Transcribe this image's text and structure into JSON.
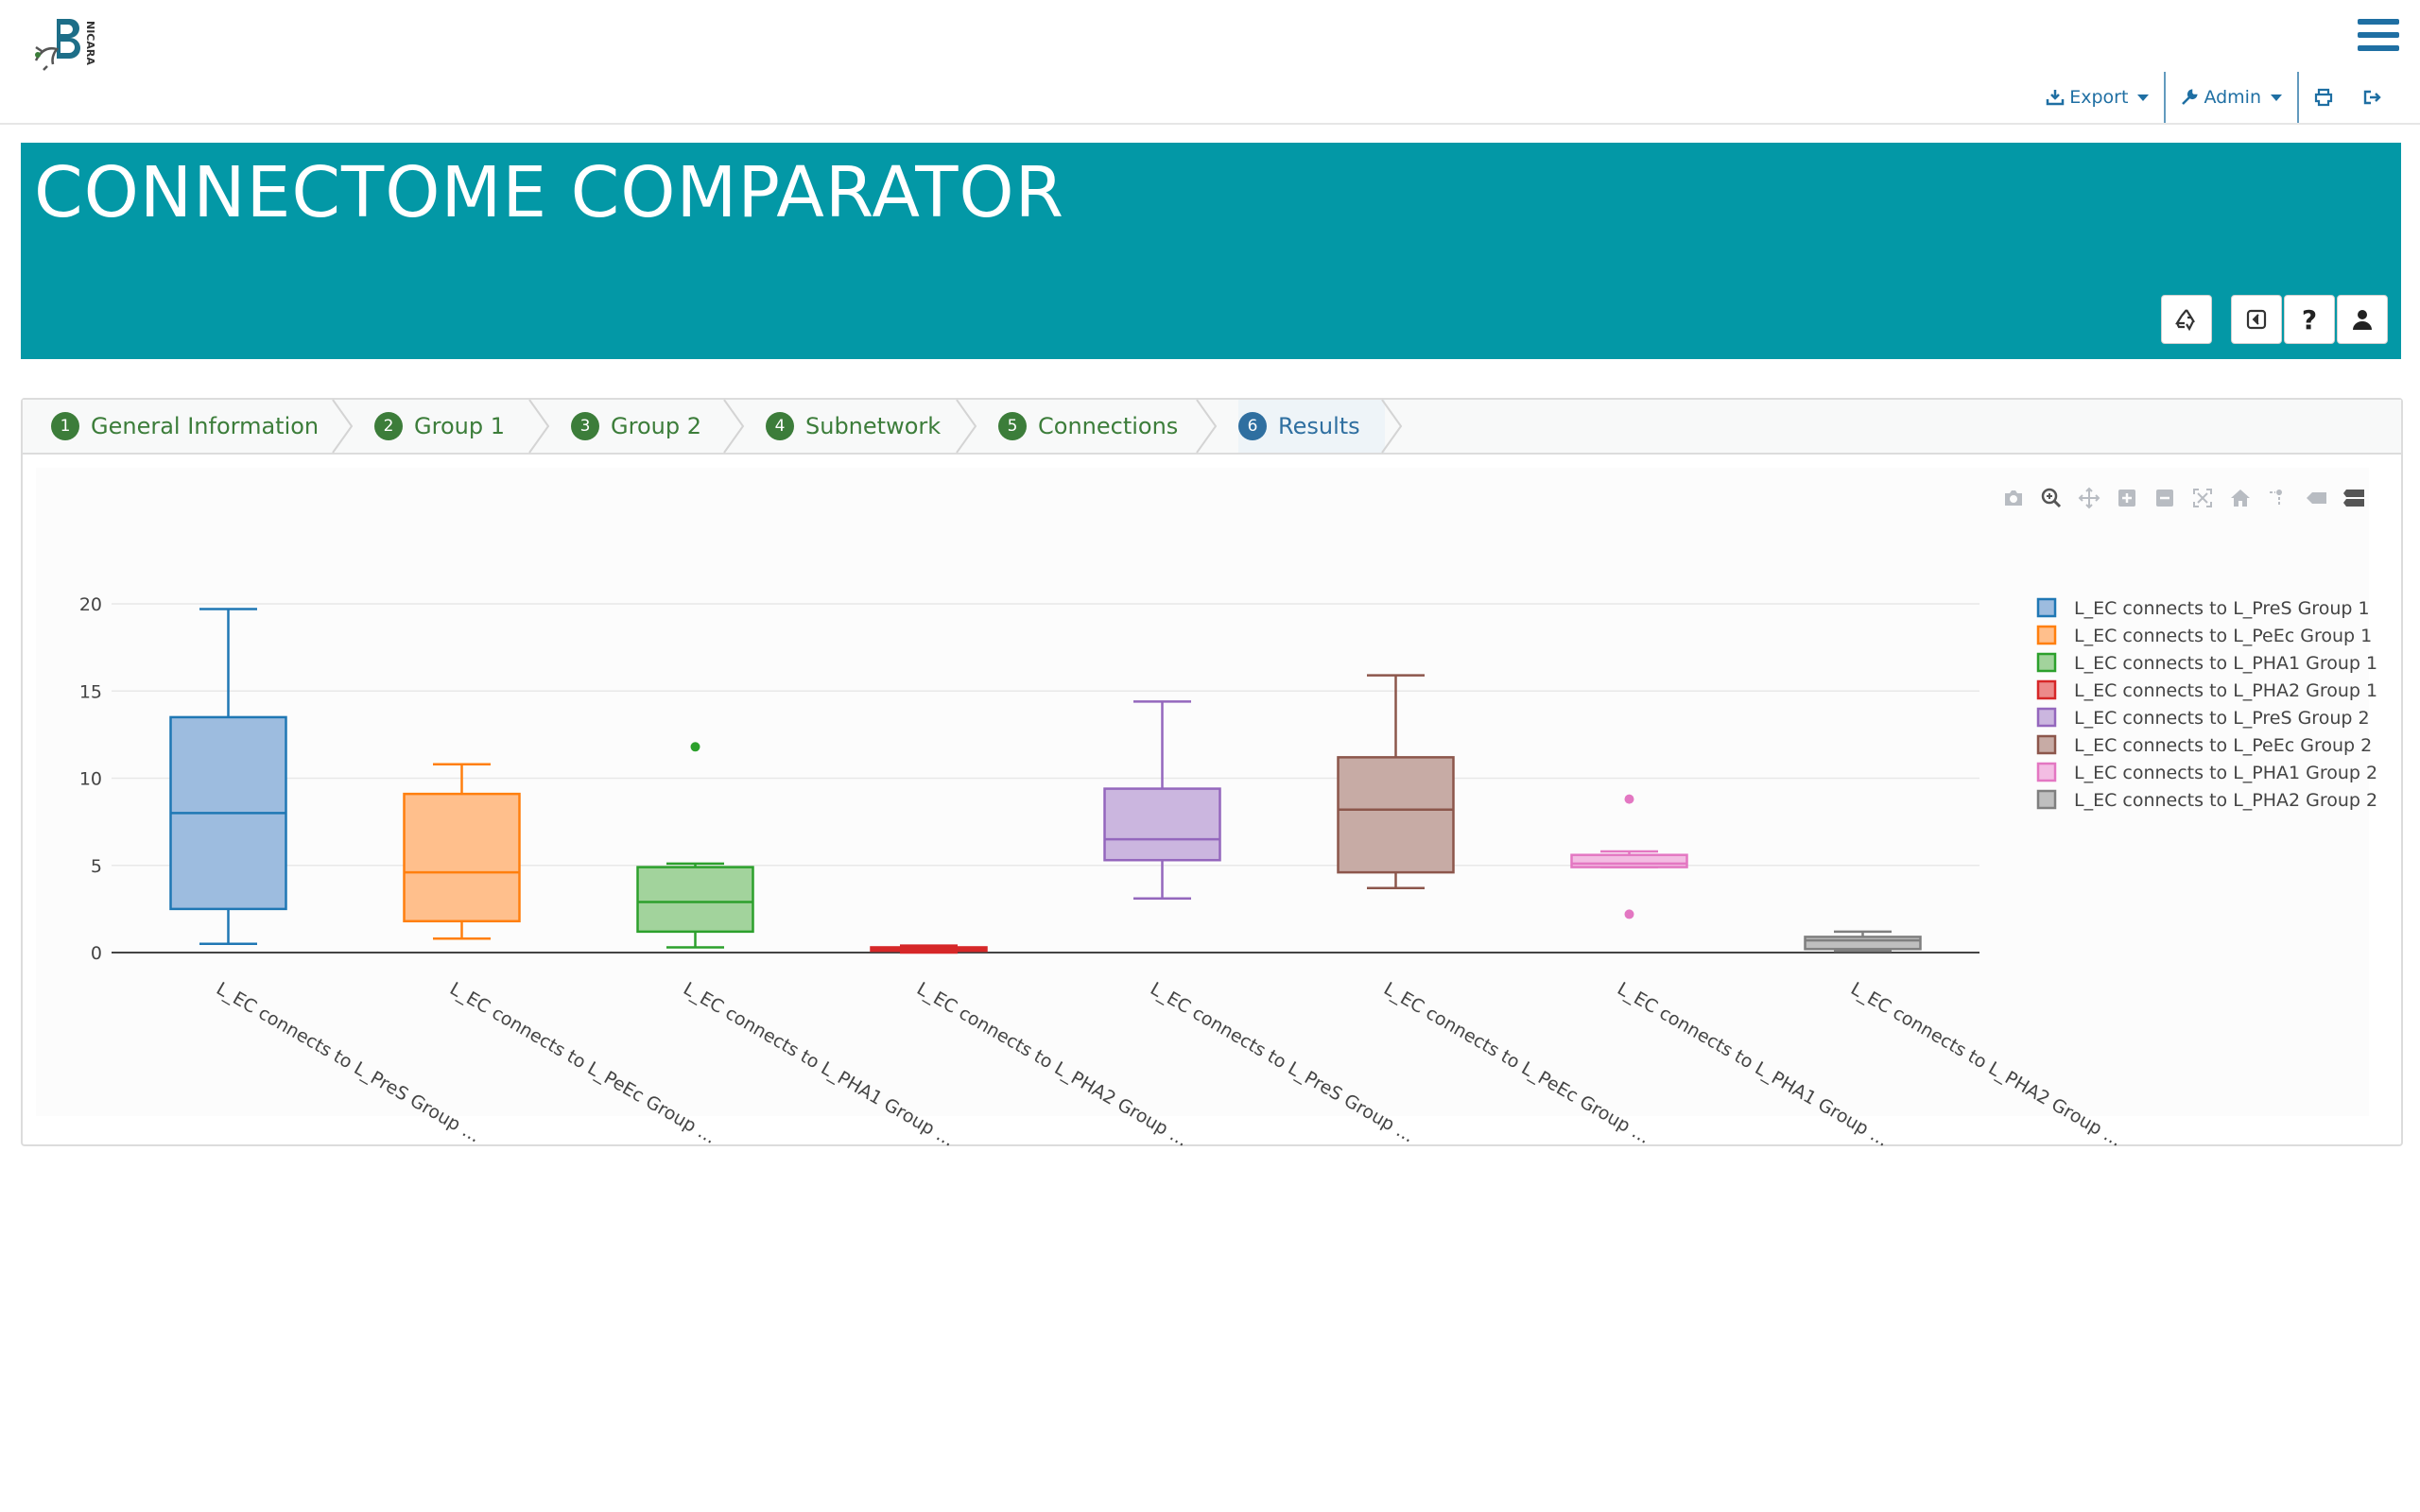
{
  "app": {
    "logo_text": "NICARA",
    "menu_icon": "hamburger-icon"
  },
  "toolbar": {
    "export_label": "Export",
    "admin_label": "Admin",
    "export_icon": "download-icon",
    "admin_icon": "wrench-icon",
    "print_icon": "print-icon",
    "logout_icon": "sign-out-icon"
  },
  "banner": {
    "title": "CONNECTOME COMPARATOR",
    "buttons": [
      "recycle-icon",
      "back-icon",
      "help-icon",
      "user-icon"
    ],
    "help_glyph": "?"
  },
  "wizard": {
    "tabs": [
      {
        "num": "1",
        "label": "General Information"
      },
      {
        "num": "2",
        "label": "Group 1"
      },
      {
        "num": "3",
        "label": "Group 2"
      },
      {
        "num": "4",
        "label": "Subnetwork"
      },
      {
        "num": "5",
        "label": "Connections"
      },
      {
        "num": "6",
        "label": "Results"
      }
    ],
    "active_tab": "6"
  },
  "colors": {
    "banner": "#0398a6",
    "tab_green": "#3c7d3a",
    "tab_active": "#2f6fa0",
    "link_blue": "#1f6fa3"
  },
  "chart_data": {
    "type": "box",
    "ylim": [
      -0.5,
      21
    ],
    "yticks": [
      0,
      5,
      10,
      15,
      20
    ],
    "legend_position": "right",
    "grid": true,
    "tick_labels": [
      "L_EC connects to L_PreS Group ...",
      "L_EC connects to L_PeEc Group ...",
      "L_EC connects to L_PHA1 Group ...",
      "L_EC connects to L_PHA2 Group ...",
      "L_EC connects to L_PreS Group ...",
      "L_EC connects to L_PeEc Group ...",
      "L_EC connects to L_PHA1 Group ...",
      "L_EC connects to L_PHA2 Group ..."
    ],
    "series": [
      {
        "name": "L_EC connects to L_PreS Group 1",
        "color": "#1f77b4",
        "fill": "#9dbcdf",
        "min": 0.5,
        "q1": 2.5,
        "median": 8,
        "q3": 13.5,
        "max": 19.7,
        "outliers": []
      },
      {
        "name": "L_EC connects to L_PeEc Group 1",
        "color": "#ff7f0e",
        "fill": "#ffbf8c",
        "min": 0.8,
        "q1": 1.8,
        "median": 4.6,
        "q3": 9.1,
        "max": 10.8,
        "outliers": []
      },
      {
        "name": "L_EC connects to L_PHA1 Group 1",
        "color": "#2ca02c",
        "fill": "#a2d39c",
        "min": 0.3,
        "q1": 1.2,
        "median": 2.9,
        "q3": 4.9,
        "max": 5.1,
        "outliers": [
          11.8
        ]
      },
      {
        "name": "L_EC connects to L_PHA2 Group 1",
        "color": "#d62728",
        "fill": "#ec8a8a",
        "min": 0.0,
        "q1": 0.1,
        "median": 0.2,
        "q3": 0.3,
        "max": 0.4,
        "outliers": []
      },
      {
        "name": "L_EC connects to L_PreS Group 2",
        "color": "#9467bd",
        "fill": "#cbb6df",
        "min": 3.1,
        "q1": 5.3,
        "median": 6.5,
        "q3": 9.4,
        "max": 14.4,
        "outliers": []
      },
      {
        "name": "L_EC connects to L_PeEc Group 2",
        "color": "#8c564b",
        "fill": "#c7aba5",
        "min": 3.7,
        "q1": 4.6,
        "median": 8.2,
        "q3": 11.2,
        "max": 15.9,
        "outliers": []
      },
      {
        "name": "L_EC connects to L_PHA1 Group 2",
        "color": "#e377c2",
        "fill": "#f3bde3",
        "min": 4.9,
        "q1": 4.9,
        "median": 5.1,
        "q3": 5.6,
        "max": 5.8,
        "outliers": [
          8.8,
          2.2
        ]
      },
      {
        "name": "L_EC connects to L_PHA2 Group 2",
        "color": "#7f7f7f",
        "fill": "#bfbfbf",
        "min": 0.1,
        "q1": 0.2,
        "median": 0.7,
        "q3": 0.9,
        "max": 1.2,
        "outliers": []
      }
    ]
  }
}
